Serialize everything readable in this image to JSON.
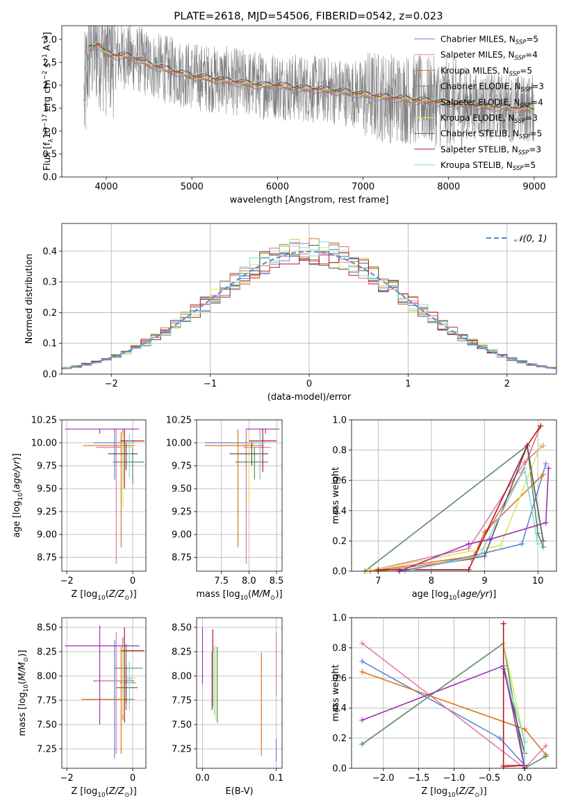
{
  "title": "PLATE=2618, MJD=54506, FIBERID=0542, z=0.023",
  "legend": {
    "entries": [
      {
        "label": "Chabrier MILES, N",
        "sub": "SSP",
        "tail": "=5",
        "color": "#5b86d6"
      },
      {
        "label": "Salpeter MILES, N",
        "sub": "SSP",
        "tail": "=4",
        "color": "#e07aae"
      },
      {
        "label": "Kroupa MILES, N",
        "sub": "SSP",
        "tail": "=5",
        "color": "#d9751a"
      },
      {
        "label": "Chabrier ELODIE, N",
        "sub": "SSP",
        "tail": "=3",
        "color": "#5a8a5e"
      },
      {
        "label": "Salpeter ELODIE, N",
        "sub": "SSP",
        "tail": "=4",
        "color": "#e36f5a"
      },
      {
        "label": "Kroupa ELODIE, N",
        "sub": "SSP",
        "tail": "=3",
        "color": "#d8e84e"
      },
      {
        "label": "Chabrier STELIB, N",
        "sub": "SSP",
        "tail": "=5",
        "color": "#555555"
      },
      {
        "label": "Salpeter STELIB, N",
        "sub": "SSP",
        "tail": "=3",
        "color": "#b2182b"
      },
      {
        "label": "Kroupa STELIB, N",
        "sub": "SSP",
        "tail": "=5",
        "color": "#7fd8e0"
      }
    ],
    "normal_label": "𝒩(0, 1)",
    "normal_color": "#5b8fd6"
  },
  "chart_data": [
    {
      "id": "spectrum",
      "type": "line",
      "xlabel": "wavelength [Angstrom, rest frame]",
      "ylabel": "Flux [f",
      "xlim": [
        3480,
        9260
      ],
      "ylim": [
        0,
        3.3
      ],
      "xticks": [
        "4000",
        "5000",
        "6000",
        "7000",
        "8000",
        "9000"
      ],
      "yticks": [
        "0.0",
        "0.5",
        "1.0",
        "1.5",
        "2.0",
        "2.5",
        "3.0"
      ],
      "grid": false,
      "legend": "top-right",
      "data_color": "#808080",
      "continuum": {
        "x": [
          3740,
          3800,
          3900,
          4000,
          4100,
          4200,
          4300,
          4400,
          4500,
          4600,
          4700,
          4800,
          4900,
          5000,
          5200,
          5400,
          5600,
          5800,
          6000,
          6200,
          6400,
          6600,
          6800,
          7000,
          7200,
          7400,
          7600,
          7800,
          8000,
          8200,
          8400,
          8600,
          8800,
          9000
        ],
        "y": [
          1.6,
          2.8,
          2.9,
          2.7,
          2.65,
          2.65,
          2.6,
          2.55,
          2.45,
          2.4,
          2.35,
          2.3,
          2.25,
          2.2,
          2.15,
          2.1,
          2.05,
          2.0,
          2.0,
          1.95,
          1.92,
          1.9,
          1.85,
          1.8,
          1.75,
          1.72,
          1.68,
          1.65,
          1.6,
          1.57,
          1.55,
          1.52,
          1.5,
          1.48
        ]
      }
    },
    {
      "id": "residuals",
      "type": "histogram",
      "xlabel": "(data-model)/error",
      "ylabel": "Normed distribution",
      "xlim": [
        -2.5,
        2.5
      ],
      "ylim": [
        0,
        0.49
      ],
      "xticks": [
        "−2",
        "−1",
        "0",
        "1",
        "2"
      ],
      "yticks": [
        "0.0",
        "0.1",
        "0.2",
        "0.3",
        "0.4"
      ],
      "grid": true,
      "legend": "top-right",
      "bin_width": 0.1,
      "series_ref": "legend.entries"
    },
    {
      "id": "age_vs_Z",
      "type": "errorbar",
      "xlabel": "Z [log",
      "ylabel": "age  [log",
      "xlim": [
        -2.15,
        0.4
      ],
      "ylim": [
        8.6,
        10.25
      ],
      "xticks": [
        "−2",
        "0"
      ],
      "yticks": [
        "8.75",
        "9.00",
        "9.25",
        "9.50",
        "9.75",
        "10.00",
        "10.25"
      ],
      "grid": true,
      "points": [
        {
          "x": -0.55,
          "xe": [
            -1.2,
            0.05
          ],
          "y": 10.0,
          "ye": [
            9.6,
            10.15
          ],
          "c": "#5b86d6"
        },
        {
          "x": -0.5,
          "xe": [
            -1.1,
            -0.3
          ],
          "y": 9.95,
          "ye": [
            8.68,
            10.15
          ],
          "c": "#e07aae"
        },
        {
          "x": -0.35,
          "xe": [
            -1.5,
            0.05
          ],
          "y": 9.97,
          "ye": [
            8.86,
            10.12
          ],
          "c": "#d9751a"
        },
        {
          "x": 0.0,
          "xe": [
            -0.6,
            0.35
          ],
          "y": 9.79,
          "ye": [
            9.55,
            9.95
          ],
          "c": "#5a8a5e"
        },
        {
          "x": -0.3,
          "xe": [
            -0.4,
            0.1
          ],
          "y": 10.02,
          "ye": [
            9.55,
            10.15
          ],
          "c": "#e36f5a"
        },
        {
          "x": -0.3,
          "xe": [
            -0.35,
            0.0
          ],
          "y": 9.95,
          "ye": [
            9.3,
            10.1
          ],
          "c": "#d8e84e"
        },
        {
          "x": -0.2,
          "xe": [
            -0.75,
            0.15
          ],
          "y": 9.88,
          "ye": [
            9.7,
            10.0
          ],
          "c": "#555555"
        },
        {
          "x": -0.25,
          "xe": [
            -0.35,
            0.35
          ],
          "y": 10.02,
          "ye": [
            9.5,
            10.15
          ],
          "c": "#b2182b"
        },
        {
          "x": -0.1,
          "xe": [
            -0.2,
            0.0
          ],
          "y": 10.0,
          "ye": [
            9.62,
            10.1
          ],
          "c": "#7fd8e0"
        },
        {
          "x": -1.0,
          "xe": [
            -2.05,
            0.2
          ],
          "y": 10.15,
          "ye": [
            10.1,
            10.15
          ],
          "c": "#9d2fb3"
        }
      ]
    },
    {
      "id": "age_vs_mass",
      "type": "errorbar",
      "xlabel": "mass [log",
      "ylabel": "",
      "xlim": [
        7.05,
        8.6
      ],
      "ylim": [
        8.6,
        10.25
      ],
      "xticks": [
        "7.5",
        "8.0",
        "8.5"
      ],
      "yticks": [
        "8.75",
        "9.00",
        "9.25",
        "9.50",
        "9.75",
        "10.00",
        "10.25"
      ],
      "grid": true,
      "points": [
        {
          "x": 7.95,
          "xe": [
            7.2,
            8.3
          ],
          "y": 10.0,
          "ye": [
            9.7,
            10.15
          ],
          "c": "#5b86d6"
        },
        {
          "x": 7.95,
          "xe": [
            7.9,
            8.4
          ],
          "y": 9.95,
          "ye": [
            8.68,
            10.15
          ],
          "c": "#e07aae"
        },
        {
          "x": 7.8,
          "xe": [
            7.2,
            8.25
          ],
          "y": 9.97,
          "ye": [
            8.86,
            10.15
          ],
          "c": "#d9751a"
        },
        {
          "x": 8.1,
          "xe": [
            7.75,
            8.35
          ],
          "y": 9.79,
          "ye": [
            9.6,
            9.95
          ],
          "c": "#5a8a5e"
        },
        {
          "x": 8.2,
          "xe": [
            8.0,
            8.4
          ],
          "y": 10.02,
          "ye": [
            9.6,
            10.15
          ],
          "c": "#e36f5a"
        },
        {
          "x": 8.0,
          "xe": [
            7.9,
            8.1
          ],
          "y": 9.98,
          "ye": [
            9.3,
            10.12
          ],
          "c": "#d8e84e"
        },
        {
          "x": 8.05,
          "xe": [
            7.65,
            8.35
          ],
          "y": 9.88,
          "ye": [
            9.75,
            10.0
          ],
          "c": "#555555"
        },
        {
          "x": 8.25,
          "xe": [
            8.0,
            8.5
          ],
          "y": 10.02,
          "ye": [
            9.68,
            10.15
          ],
          "c": "#b2182b"
        },
        {
          "x": 8.2,
          "xe": [
            8.1,
            8.3
          ],
          "y": 10.0,
          "ye": [
            9.6,
            10.1
          ],
          "c": "#7fd8e0"
        },
        {
          "x": 8.3,
          "xe": [
            7.95,
            8.55
          ],
          "y": 10.15,
          "ye": [
            10.1,
            10.15
          ],
          "c": "#9d2fb3"
        }
      ]
    },
    {
      "id": "weight_vs_age",
      "type": "line",
      "xlabel": "age  [log",
      "ylabel": "mass weight",
      "xlim": [
        6.5,
        10.35
      ],
      "ylim": [
        0,
        1
      ],
      "xticks": [
        "7",
        "8",
        "9",
        "10"
      ],
      "yticks": [
        "0.0",
        "0.2",
        "0.4",
        "0.6",
        "0.8",
        "1.0"
      ],
      "grid": true,
      "series": [
        {
          "c": "#5b86d6",
          "x": [
            7.5,
            9.0,
            9.7,
            10.15
          ],
          "y": [
            0.0,
            0.12,
            0.18,
            0.71
          ]
        },
        {
          "c": "#e07aae",
          "x": [
            6.8,
            8.7,
            9.75,
            10.1
          ],
          "y": [
            0.0,
            0.15,
            0.72,
            0.83
          ]
        },
        {
          "c": "#d9751a",
          "x": [
            6.85,
            8.8,
            9.0,
            10.1
          ],
          "y": [
            0.0,
            0.1,
            0.26,
            0.64
          ]
        },
        {
          "c": "#5a8a5e",
          "x": [
            6.75,
            9.8,
            10.0,
            10.1
          ],
          "y": [
            0.0,
            0.83,
            0.25,
            0.16
          ]
        },
        {
          "c": "#e36f5a",
          "x": [
            7.0,
            8.75,
            9.7,
            10.05
          ],
          "y": [
            0.0,
            0.08,
            0.65,
            0.96
          ]
        },
        {
          "c": "#d8e84e",
          "x": [
            6.8,
            9.3,
            10.05
          ],
          "y": [
            0.0,
            0.17,
            0.83
          ]
        },
        {
          "c": "#555555",
          "x": [
            7.4,
            9.0,
            9.8,
            10.1
          ],
          "y": [
            0.0,
            0.1,
            0.83,
            0.2
          ]
        },
        {
          "c": "#b2182b",
          "x": [
            7.0,
            8.7,
            9.8,
            10.05
          ],
          "y": [
            0.01,
            0.01,
            0.83,
            0.96
          ]
        },
        {
          "c": "#7fd8e0",
          "x": [
            7.5,
            8.9,
            9.75,
            10.0
          ],
          "y": [
            0.0,
            0.1,
            0.68,
            0.18
          ]
        },
        {
          "c": "#9d2fb3",
          "x": [
            7.4,
            8.7,
            9.1,
            10.15,
            10.2
          ],
          "y": [
            0.0,
            0.18,
            0.21,
            0.32,
            0.68
          ]
        }
      ]
    },
    {
      "id": "mass_vs_Z",
      "type": "errorbar",
      "xlabel": "Z [log",
      "ylabel": "mass [log",
      "xlim": [
        -2.15,
        0.4
      ],
      "ylim": [
        7.05,
        8.6
      ],
      "xticks": [
        "−2",
        "0"
      ],
      "yticks": [
        "7.25",
        "7.50",
        "7.75",
        "8.00",
        "8.25",
        "8.50"
      ],
      "grid": true,
      "points": [
        {
          "x": -0.55,
          "xe": [
            -1.2,
            0.05
          ],
          "y": 7.95,
          "ye": [
            7.15,
            8.37
          ],
          "c": "#5b86d6"
        },
        {
          "x": -0.5,
          "xe": [
            -1.1,
            -0.3
          ],
          "y": 7.95,
          "ye": [
            7.2,
            8.45
          ],
          "c": "#e07aae"
        },
        {
          "x": -0.35,
          "xe": [
            -1.55,
            0.05
          ],
          "y": 7.76,
          "ye": [
            7.2,
            8.3
          ],
          "c": "#d9751a"
        },
        {
          "x": -0.2,
          "xe": [
            -0.55,
            0.3
          ],
          "y": 8.08,
          "ye": [
            7.65,
            8.33
          ],
          "c": "#5a8a5e"
        },
        {
          "x": -0.3,
          "xe": [
            -0.4,
            0.1
          ],
          "y": 7.93,
          "ye": [
            7.55,
            8.4
          ],
          "c": "#e36f5a"
        },
        {
          "x": -0.3,
          "xe": [
            -0.35,
            0.1
          ],
          "y": 7.98,
          "ye": [
            7.6,
            8.3
          ],
          "c": "#d8e84e"
        },
        {
          "x": -0.2,
          "xe": [
            -0.5,
            0.15
          ],
          "y": 7.88,
          "ye": [
            7.72,
            8.1
          ],
          "c": "#555555"
        },
        {
          "x": -0.25,
          "xe": [
            -0.35,
            0.35
          ],
          "y": 8.26,
          "ye": [
            7.52,
            8.5
          ],
          "c": "#b2182b"
        },
        {
          "x": -0.1,
          "xe": [
            -0.2,
            0.0
          ],
          "y": 7.97,
          "ye": [
            7.65,
            8.15
          ],
          "c": "#7fd8e0"
        },
        {
          "x": -1.0,
          "xe": [
            -2.05,
            0.2
          ],
          "y": 8.31,
          "ye": [
            7.5,
            8.52
          ],
          "c": "#9d2fb3"
        }
      ]
    },
    {
      "id": "mass_vs_ebv",
      "type": "errorbar",
      "xlabel": "E(B-V)",
      "ylabel": "",
      "xlim": [
        -0.008,
        0.108
      ],
      "ylim": [
        7.05,
        8.6
      ],
      "xticks": [
        "0.0",
        "0.1"
      ],
      "yticks": [
        "7.25",
        "7.50",
        "7.75",
        "8.00",
        "8.25",
        "8.50"
      ],
      "grid": true,
      "points": [
        {
          "x": 0.1,
          "xe": [
            0.1,
            0.1
          ],
          "y": 7.25,
          "ye": [
            7.12,
            7.35
          ],
          "c": "#5b86d6"
        },
        {
          "x": 0.1,
          "xe": [
            0.1,
            0.1
          ],
          "y": 8.2,
          "ye": [
            7.8,
            8.45
          ],
          "c": "#e07aae"
        },
        {
          "x": 0.08,
          "xe": [
            0.08,
            0.08
          ],
          "y": 7.7,
          "ye": [
            7.18,
            8.24
          ],
          "c": "#d9751a"
        },
        {
          "x": 0.02,
          "xe": [
            0.02,
            0.02
          ],
          "y": 7.9,
          "ye": [
            7.52,
            8.3
          ],
          "c": "#5a8a5e"
        },
        {
          "x": 0.014,
          "xe": [
            0.014,
            0.014
          ],
          "y": 8.0,
          "ye": [
            7.68,
            8.38
          ],
          "c": "#e36f5a"
        },
        {
          "x": 0.018,
          "xe": [
            0.018,
            0.018
          ],
          "y": 7.9,
          "ye": [
            7.55,
            8.32
          ],
          "c": "#d8e84e"
        },
        {
          "x": 0.013,
          "xe": [
            0.013,
            0.013
          ],
          "y": 7.9,
          "ye": [
            7.65,
            8.25
          ],
          "c": "#555555"
        },
        {
          "x": 0.014,
          "xe": [
            0.014,
            0.014
          ],
          "y": 8.3,
          "ye": [
            8.25,
            8.48
          ],
          "c": "#b2182b"
        },
        {
          "x": 0.016,
          "xe": [
            0.016,
            0.016
          ],
          "y": 7.9,
          "ye": [
            7.6,
            8.3
          ],
          "c": "#7fd8e0"
        },
        {
          "x": 0.0,
          "xe": [
            0.0,
            0.0
          ],
          "y": 8.2,
          "ye": [
            7.92,
            8.5
          ],
          "c": "#9d2fb3"
        }
      ]
    },
    {
      "id": "weight_vs_Z",
      "type": "line",
      "xlabel": "Z [log",
      "ylabel": "mass weight",
      "xlim": [
        -2.45,
        0.45
      ],
      "ylim": [
        0,
        1
      ],
      "xticks": [
        "−2.0",
        "−1.5",
        "−1.0",
        "−0.5",
        "0.0"
      ],
      "yticks": [
        "0.0",
        "0.2",
        "0.4",
        "0.6",
        "0.8",
        "1.0"
      ],
      "grid": true,
      "series": [
        {
          "c": "#5b86d6",
          "x": [
            -2.3,
            -0.35,
            0.0
          ],
          "y": [
            0.71,
            0.2,
            0.02
          ]
        },
        {
          "c": "#e07aae",
          "x": [
            -2.3,
            0.0,
            0.3
          ],
          "y": [
            0.83,
            0.0,
            0.15
          ]
        },
        {
          "c": "#d9751a",
          "x": [
            -2.3,
            0.0,
            0.3
          ],
          "y": [
            0.64,
            0.26,
            0.09
          ]
        },
        {
          "c": "#5a8a5e",
          "x": [
            -2.3,
            -0.3,
            0.0,
            0.3
          ],
          "y": [
            0.16,
            0.83,
            0.0,
            0.08
          ]
        },
        {
          "c": "#e36f5a",
          "x": [
            -0.3,
            -0.3,
            0.0
          ],
          "y": [
            0.96,
            0.02,
            0.02
          ]
        },
        {
          "c": "#d8e84e",
          "x": [
            -0.3,
            0.0,
            0.0
          ],
          "y": [
            0.83,
            0.17,
            0.0
          ]
        },
        {
          "c": "#555555",
          "x": [
            -0.3,
            0.0,
            0.0
          ],
          "y": [
            0.66,
            0.1,
            0.0
          ]
        },
        {
          "c": "#b2182b",
          "x": [
            -0.3,
            -0.3,
            0.0
          ],
          "y": [
            0.96,
            0.01,
            0.02
          ]
        },
        {
          "c": "#7fd8e0",
          "x": [
            -0.3,
            0.0,
            0.0
          ],
          "y": [
            0.68,
            0.18,
            0.0
          ]
        },
        {
          "c": "#9d2fb3",
          "x": [
            -2.3,
            -0.3,
            0.0
          ],
          "y": [
            0.32,
            0.68,
            0.0
          ]
        }
      ]
    }
  ]
}
